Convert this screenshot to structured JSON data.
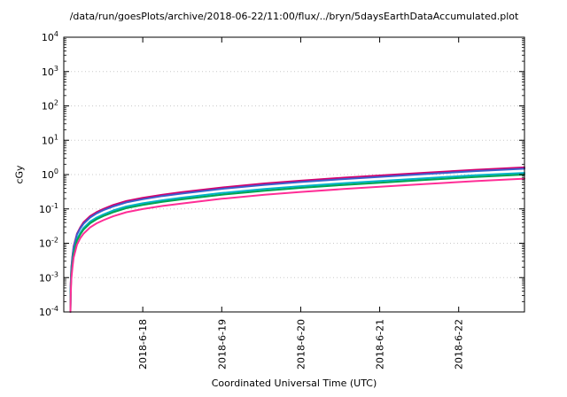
{
  "chart_data": {
    "type": "line",
    "title": "/data/run/goesPlots/archive/2018-06-22/11:00/flux/../bryn/5daysEarthDataAccumulated.plot",
    "xlabel": "Coordinated Universal Time (UTC)",
    "ylabel": "cGy",
    "y_scale": "log",
    "ylim": [
      0.0001,
      10000
    ],
    "y_tick_exponents": [
      -4,
      -3,
      -2,
      -1,
      0,
      1,
      2,
      3,
      4
    ],
    "x_domain_hours": [
      0,
      140
    ],
    "x_ticks": [
      {
        "hour": 24,
        "label": "2018-6-18"
      },
      {
        "hour": 48,
        "label": "2018-6-19"
      },
      {
        "hour": 72,
        "label": "2018-6-20"
      },
      {
        "hour": 96,
        "label": "2018-6-21"
      },
      {
        "hour": 120,
        "label": "2018-6-22"
      }
    ],
    "grid": {
      "show": true,
      "style": "dotted",
      "color": "#c9c9c9"
    },
    "x_hours": [
      2.02,
      2.1,
      2.3,
      2.6,
      3,
      4,
      5,
      6,
      8,
      10,
      12,
      15,
      19,
      24,
      30,
      36,
      48,
      61,
      72,
      85,
      96,
      110,
      125,
      140
    ],
    "series": [
      {
        "color": "#d4006e",
        "end_value": 1.62,
        "values": [
          0.00013,
          0.00065,
          0.0019,
          0.0041,
          0.0081,
          0.019,
          0.029,
          0.041,
          0.062,
          0.081,
          0.1,
          0.13,
          0.17,
          0.211,
          0.259,
          0.308,
          0.421,
          0.551,
          0.664,
          0.81,
          0.94,
          1.134,
          1.377,
          1.62
        ]
      },
      {
        "color": "#3a5fcd",
        "end_value": 1.48,
        "values": [
          0.00012,
          0.00059,
          0.0018,
          0.0037,
          0.0074,
          0.018,
          0.027,
          0.037,
          0.056,
          0.074,
          0.092,
          0.118,
          0.155,
          0.192,
          0.237,
          0.281,
          0.385,
          0.503,
          0.607,
          0.74,
          0.858,
          1.036,
          1.258,
          1.48
        ]
      },
      {
        "color": "#00b2c8",
        "end_value": 1.12,
        "values": [
          9e-05,
          0.00045,
          0.0013,
          0.0028,
          0.0056,
          0.013,
          0.02,
          0.028,
          0.043,
          0.056,
          0.069,
          0.09,
          0.118,
          0.146,
          0.179,
          0.213,
          0.291,
          0.381,
          0.459,
          0.56,
          0.65,
          0.784,
          0.952,
          1.12
        ]
      },
      {
        "color": "#00a550",
        "end_value": 1.0,
        "values": [
          8e-05,
          0.0004,
          0.0012,
          0.0025,
          0.005,
          0.012,
          0.018,
          0.025,
          0.038,
          0.05,
          0.062,
          0.08,
          0.105,
          0.13,
          0.16,
          0.19,
          0.26,
          0.34,
          0.41,
          0.5,
          0.58,
          0.7,
          0.85,
          1.0
        ]
      },
      {
        "color": "#ff2d96",
        "end_value": 0.76,
        "values": [
          6e-05,
          0.0003,
          0.0009,
          0.0019,
          0.0038,
          0.0091,
          0.014,
          0.019,
          0.029,
          0.038,
          0.047,
          0.061,
          0.08,
          0.099,
          0.122,
          0.144,
          0.198,
          0.258,
          0.312,
          0.38,
          0.441,
          0.532,
          0.646,
          0.76
        ]
      }
    ]
  }
}
